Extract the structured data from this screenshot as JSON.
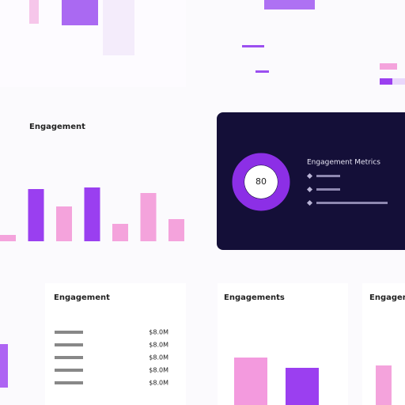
{
  "chart_data": [
    {
      "type": "bar",
      "title": "Engagement",
      "categories": [
        null,
        null,
        null,
        null,
        null,
        null,
        null
      ],
      "values": [
        8,
        66,
        44,
        68,
        22,
        61,
        28
      ],
      "colors": [
        "#f4a3dc",
        "#9a3ff0",
        "#f4a3dc",
        "#9a3ff0",
        "#f4a3dc",
        "#f4a3dc",
        "#f4a3dc"
      ]
    },
    {
      "type": "bar",
      "title": "Engagements",
      "categories": [
        null,
        null
      ],
      "values": [
        60,
        47
      ],
      "colors": [
        "#f39ade",
        "#9b3ff0"
      ]
    }
  ],
  "metric_card": {
    "value": "80",
    "title": "Engagement Metrics"
  },
  "table_card": {
    "title": "Engagement",
    "values": [
      "$8.0M",
      "$8.0M",
      "$8.0M",
      "$8.0M",
      "$8.0M"
    ]
  },
  "side_card": {
    "title": "Engagement A"
  }
}
